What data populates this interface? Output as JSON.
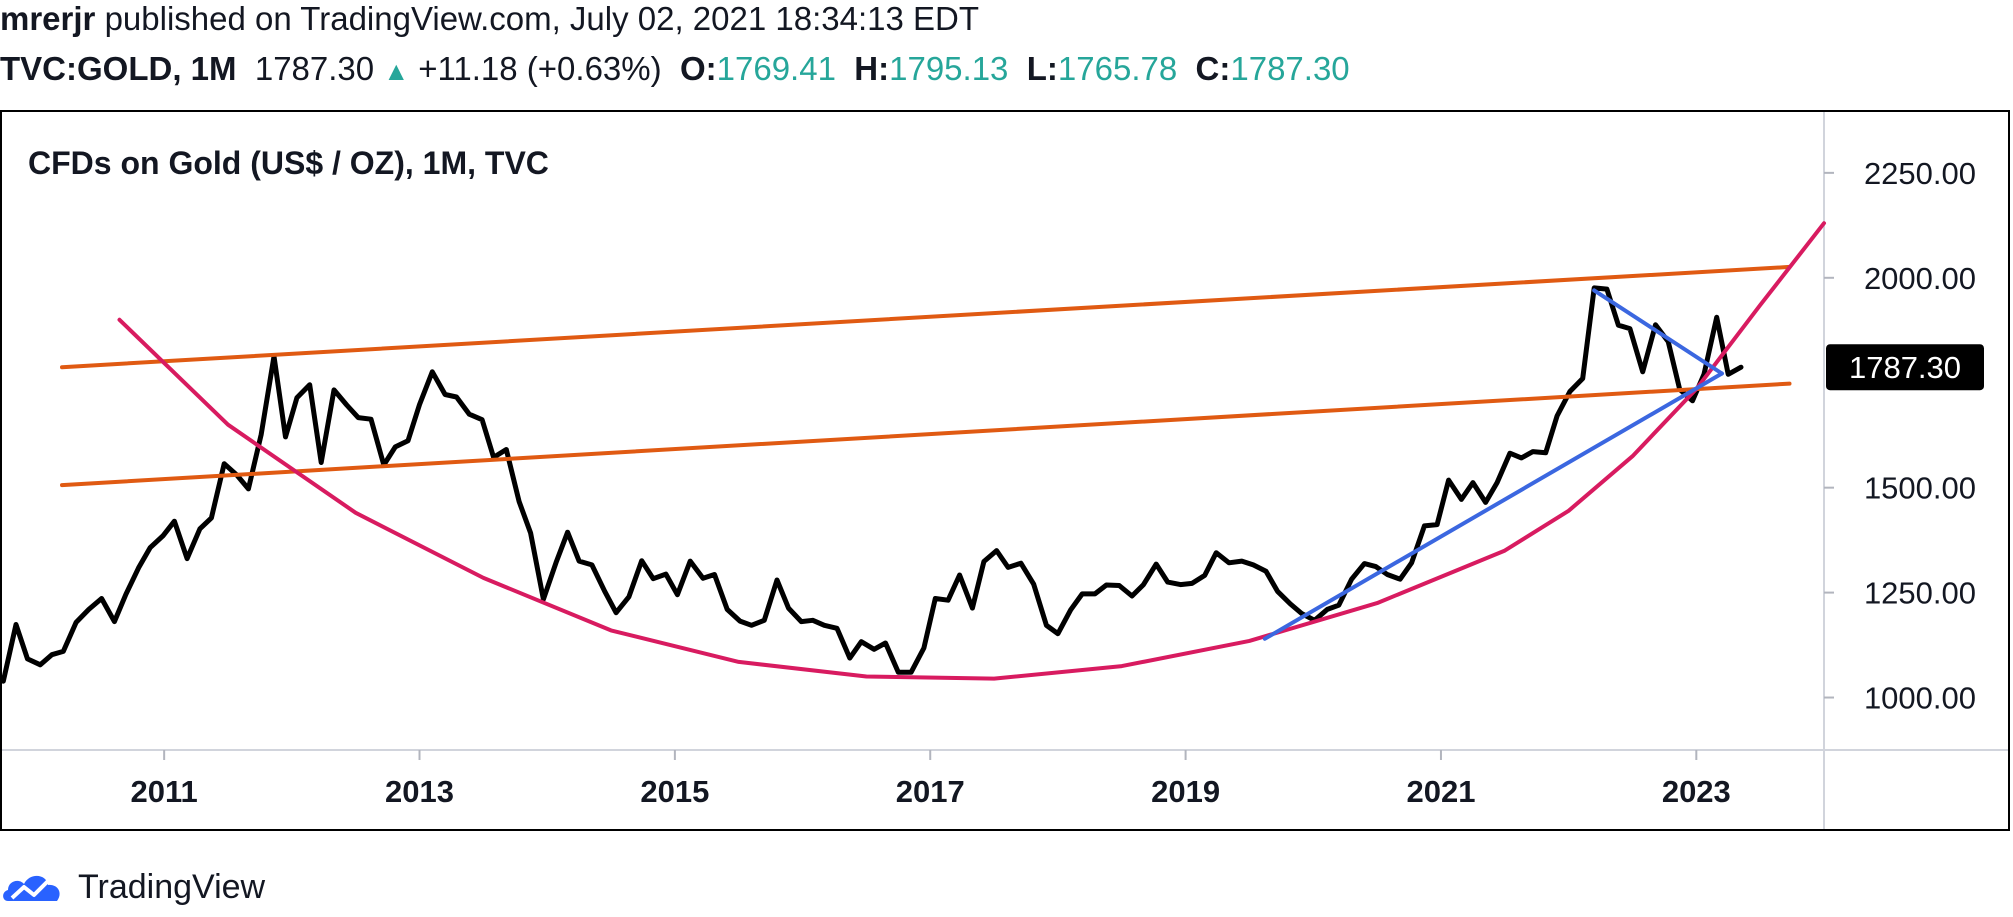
{
  "header": {
    "author": "mrerjr",
    "published_text": "published on TradingView.com, July 02, 2021 18:34:13 EDT",
    "symbol": "TVC:GOLD, 1M",
    "last": "1787.30",
    "change_arrow": "▲",
    "change": "+11.18 (+0.63%)",
    "o_label": "O:",
    "o_value": "1769.41",
    "h_label": "H:",
    "h_value": "1795.13",
    "l_label": "L:",
    "l_value": "1765.78",
    "c_label": "C:",
    "c_value": "1787.30",
    "value_color": "#26a69a"
  },
  "footer": {
    "brand": "TradingView",
    "logo_icon": "tradingview-cloud-icon"
  },
  "chart_data": {
    "type": "line",
    "title": "CFDs on Gold (US$ / OZ), 1M, TVC",
    "x_tick_labels": [
      "2011",
      "2013",
      "2015",
      "2017",
      "2019",
      "2021",
      "2023"
    ],
    "x_ticks": [
      2011,
      2013,
      2015,
      2017,
      2019,
      2021,
      2023
    ],
    "y_tick_labels": [
      "2250.00",
      "2000.00",
      "1500.00",
      "1250.00",
      "1000.00"
    ],
    "y_ticks": [
      2250,
      2000,
      1500,
      1250,
      1000
    ],
    "xlim": [
      2009.73,
      2024.0
    ],
    "ylim": [
      875,
      2395
    ],
    "grid": false,
    "last_price_label": "1787.30",
    "series": [
      {
        "color": "#000000",
        "points": [
          [
            2009.74,
            1039
          ],
          [
            2009.84,
            1174
          ],
          [
            2009.93,
            1092
          ],
          [
            2010.03,
            1078
          ],
          [
            2010.12,
            1102
          ],
          [
            2010.21,
            1110
          ],
          [
            2010.31,
            1179
          ],
          [
            2010.41,
            1210
          ],
          [
            2010.51,
            1236
          ],
          [
            2010.61,
            1181
          ],
          [
            2010.7,
            1246
          ],
          [
            2010.8,
            1309
          ],
          [
            2010.89,
            1357
          ],
          [
            2010.99,
            1385
          ],
          [
            2011.08,
            1420
          ],
          [
            2011.18,
            1331
          ],
          [
            2011.28,
            1402
          ],
          [
            2011.37,
            1428
          ],
          [
            2011.47,
            1557
          ],
          [
            2011.57,
            1530
          ],
          [
            2011.66,
            1497
          ],
          [
            2011.76,
            1627
          ],
          [
            2011.86,
            1813
          ],
          [
            2011.95,
            1621
          ],
          [
            2012.04,
            1714
          ],
          [
            2012.14,
            1745
          ],
          [
            2012.23,
            1560
          ],
          [
            2012.33,
            1733
          ],
          [
            2012.43,
            1697
          ],
          [
            2012.52,
            1667
          ],
          [
            2012.62,
            1663
          ],
          [
            2012.72,
            1554
          ],
          [
            2012.81,
            1597
          ],
          [
            2012.91,
            1612
          ],
          [
            2013.0,
            1698
          ],
          [
            2013.1,
            1776
          ],
          [
            2013.2,
            1722
          ],
          [
            2013.29,
            1716
          ],
          [
            2013.39,
            1675
          ],
          [
            2013.49,
            1662
          ],
          [
            2013.58,
            1572
          ],
          [
            2013.68,
            1591
          ],
          [
            2013.78,
            1467
          ],
          [
            2013.87,
            1392
          ],
          [
            2013.97,
            1234
          ],
          [
            2014.07,
            1322
          ],
          [
            2014.16,
            1394
          ],
          [
            2014.25,
            1325
          ],
          [
            2014.35,
            1316
          ],
          [
            2014.45,
            1253
          ],
          [
            2014.54,
            1202
          ],
          [
            2014.64,
            1240
          ],
          [
            2014.74,
            1326
          ],
          [
            2014.83,
            1283
          ],
          [
            2014.93,
            1294
          ],
          [
            2015.02,
            1245
          ],
          [
            2015.12,
            1325
          ],
          [
            2015.22,
            1284
          ],
          [
            2015.31,
            1293
          ],
          [
            2015.41,
            1210
          ],
          [
            2015.51,
            1182
          ],
          [
            2015.6,
            1172
          ],
          [
            2015.7,
            1184
          ],
          [
            2015.8,
            1280
          ],
          [
            2015.89,
            1213
          ],
          [
            2015.99,
            1181
          ],
          [
            2016.08,
            1184
          ],
          [
            2016.17,
            1172
          ],
          [
            2016.27,
            1165
          ],
          [
            2016.37,
            1094
          ],
          [
            2016.46,
            1133
          ],
          [
            2016.56,
            1115
          ],
          [
            2016.65,
            1130
          ],
          [
            2016.75,
            1060
          ],
          [
            2016.85,
            1060
          ],
          [
            2016.95,
            1118
          ],
          [
            2017.04,
            1236
          ],
          [
            2017.14,
            1232
          ],
          [
            2017.23,
            1292
          ],
          [
            2017.33,
            1213
          ],
          [
            2017.42,
            1324
          ],
          [
            2017.52,
            1350
          ],
          [
            2017.61,
            1310
          ],
          [
            2017.71,
            1320
          ],
          [
            2017.81,
            1270
          ],
          [
            2017.91,
            1172
          ],
          [
            2018.0,
            1152
          ],
          [
            2018.1,
            1209
          ],
          [
            2018.19,
            1247
          ],
          [
            2018.29,
            1247
          ],
          [
            2018.38,
            1268
          ],
          [
            2018.48,
            1267
          ],
          [
            2018.58,
            1242
          ],
          [
            2018.67,
            1269
          ],
          [
            2018.77,
            1318
          ],
          [
            2018.86,
            1275
          ],
          [
            2018.96,
            1269
          ],
          [
            2019.05,
            1272
          ],
          [
            2019.15,
            1291
          ],
          [
            2019.24,
            1345
          ],
          [
            2019.34,
            1321
          ],
          [
            2019.44,
            1325
          ],
          [
            2019.53,
            1316
          ],
          [
            2019.63,
            1301
          ],
          [
            2019.72,
            1253
          ],
          [
            2019.82,
            1223
          ],
          [
            2019.91,
            1200
          ],
          [
            2020.01,
            1184
          ],
          [
            2020.11,
            1210
          ],
          [
            2020.2,
            1220
          ],
          [
            2020.3,
            1282
          ],
          [
            2020.4,
            1319
          ],
          [
            2020.49,
            1312
          ],
          [
            2020.58,
            1293
          ],
          [
            2020.68,
            1282
          ],
          [
            2020.77,
            1321
          ],
          [
            2020.87,
            1409
          ],
          [
            2020.97,
            1412
          ],
          [
            2021.06,
            1518
          ],
          [
            2021.16,
            1472
          ],
          [
            2021.25,
            1512
          ],
          [
            2021.35,
            1465
          ],
          [
            2021.44,
            1512
          ],
          [
            2021.54,
            1582
          ],
          [
            2021.63,
            1571
          ],
          [
            2021.72,
            1586
          ],
          [
            2021.82,
            1583
          ],
          [
            2021.91,
            1671
          ],
          [
            2022.01,
            1729
          ],
          [
            2022.11,
            1760
          ],
          [
            2022.2,
            1976
          ],
          [
            2022.3,
            1973
          ],
          [
            2022.39,
            1887
          ],
          [
            2022.48,
            1879
          ],
          [
            2022.58,
            1776
          ],
          [
            2022.68,
            1888
          ],
          [
            2022.78,
            1848
          ],
          [
            2022.87,
            1734
          ],
          [
            2022.97,
            1707
          ],
          [
            2023.06,
            1770
          ],
          [
            2023.16,
            1906
          ],
          [
            2023.25,
            1770
          ],
          [
            2023.35,
            1787
          ]
        ]
      },
      {
        "color": "#e05a12",
        "points": [
          [
            2010.2,
            1787
          ],
          [
            2023.73,
            2026
          ]
        ]
      },
      {
        "color": "#e05a12",
        "points": [
          [
            2010.2,
            1506
          ],
          [
            2023.73,
            1748
          ]
        ]
      },
      {
        "color": "#d81b60",
        "points": [
          [
            2010.65,
            1900
          ],
          [
            2011.5,
            1650
          ],
          [
            2012.5,
            1440
          ],
          [
            2013.5,
            1285
          ],
          [
            2014.5,
            1160
          ],
          [
            2015.5,
            1085
          ],
          [
            2016.5,
            1050
          ],
          [
            2017.5,
            1045
          ],
          [
            2018.5,
            1075
          ],
          [
            2019.5,
            1135
          ],
          [
            2020.5,
            1225
          ],
          [
            2021.5,
            1350
          ],
          [
            2022.0,
            1445
          ],
          [
            2022.5,
            1575
          ],
          [
            2023.0,
            1735
          ],
          [
            2023.5,
            1935
          ],
          [
            2024.0,
            2130
          ]
        ]
      },
      {
        "color": "#3b67e0",
        "points": [
          [
            2019.62,
            1140
          ],
          [
            2023.2,
            1772
          ]
        ]
      },
      {
        "color": "#3b67e0",
        "points": [
          [
            2022.2,
            1970
          ],
          [
            2023.2,
            1772
          ]
        ]
      }
    ]
  }
}
